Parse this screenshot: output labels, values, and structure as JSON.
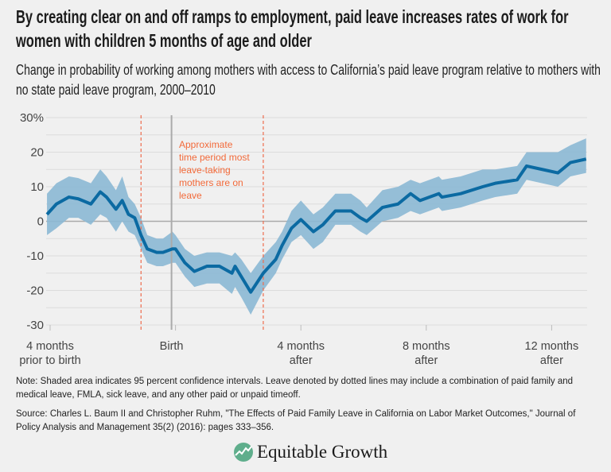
{
  "title": "By creating clear on and off ramps to employment, paid leave increases rates of work for women with children 5 months of age and older",
  "subtitle": "Change in probability of working among mothers with access to California’s paid leave program relative to mothers with no state paid leave program, 2000–2010",
  "chart_data": {
    "type": "line",
    "title": "",
    "xlabel": "",
    "ylabel": "",
    "ylim": [
      -30,
      30
    ],
    "xlim": [
      -4.1,
      13.1
    ],
    "y_ticks": [
      {
        "value": 30,
        "label": "30%"
      },
      {
        "value": 20,
        "label": "20"
      },
      {
        "value": 10,
        "label": "10"
      },
      {
        "value": 0,
        "label": "0"
      },
      {
        "value": -10,
        "label": "-10"
      },
      {
        "value": -20,
        "label": "-20"
      },
      {
        "value": -30,
        "label": "-30"
      }
    ],
    "x_ticks": [
      {
        "value": -4,
        "label": [
          "4 months",
          "prior to birth"
        ]
      },
      {
        "value": 0,
        "label": [
          "Birth"
        ]
      },
      {
        "value": 4,
        "label": [
          "4 months",
          "after"
        ]
      },
      {
        "value": 8,
        "label": [
          "8 months",
          "after"
        ]
      },
      {
        "value": 12,
        "label": [
          "12 months",
          "after"
        ]
      }
    ],
    "grid": true,
    "grid_step": 5,
    "x_unit": "months relative to birth",
    "series": [
      {
        "x": [
          -4.1,
          -3.8,
          -3.4,
          -3.1,
          -2.7,
          -2.4,
          -2.2,
          -1.9,
          -1.7,
          -1.5,
          -1.3,
          -1.1,
          -0.9,
          -0.6,
          -0.4,
          -0.1,
          0.0,
          0.3,
          0.6,
          1.0,
          1.4,
          1.8,
          1.9,
          2.1,
          2.4,
          2.8,
          3.2,
          3.4,
          3.7,
          4.0,
          4.4,
          4.7,
          5.1,
          5.6,
          5.9,
          6.1,
          6.6,
          7.1,
          7.5,
          7.8,
          8.4,
          8.5,
          9.1,
          9.8,
          10.2,
          10.9,
          11.2,
          11.7,
          12.2,
          12.6,
          13.1
        ],
        "values": [
          2,
          5,
          7,
          6.5,
          5,
          8.5,
          7,
          3.5,
          6,
          2,
          1,
          -4,
          -8,
          -9,
          -9,
          -8,
          -8,
          -12,
          -14.5,
          -13,
          -13,
          -15,
          -13,
          -16,
          -20.5,
          -15,
          -11,
          -7,
          -2,
          0.5,
          -3,
          -1,
          3,
          3,
          1,
          0,
          4,
          5,
          8,
          6,
          8,
          7,
          8,
          10,
          11,
          12,
          16,
          15,
          14,
          17,
          18
        ],
        "ci_lower": [
          -4,
          -2,
          1,
          1,
          -1,
          2,
          1,
          -3,
          0,
          -3,
          -4,
          -8,
          -12,
          -13,
          -13,
          -12,
          -12,
          -16,
          -19,
          -18,
          -18,
          -21,
          -19,
          -22,
          -27,
          -20,
          -15,
          -11,
          -6,
          -4,
          -8,
          -6,
          -1,
          -1,
          -3,
          -4,
          0,
          1,
          3,
          2,
          4,
          3,
          4,
          6,
          7,
          8,
          12,
          11,
          10,
          13,
          14
        ],
        "ci_upper": [
          8,
          11,
          13,
          12.5,
          11,
          15,
          13,
          9,
          13,
          7,
          5,
          1,
          -4,
          -5,
          -5,
          -3,
          -4,
          -8,
          -10,
          -9,
          -9,
          -10,
          -9,
          -11,
          -15,
          -10,
          -6,
          -3,
          3,
          6,
          2,
          4,
          8,
          8,
          6,
          4,
          9,
          10,
          12,
          11,
          13,
          12,
          13,
          15,
          15,
          16,
          20,
          20,
          20,
          22,
          24
        ]
      }
    ],
    "shading_label": "95 percent confidence intervals",
    "vertical_markers": [
      {
        "value": -1.1,
        "style": "dashed"
      },
      {
        "value": 0,
        "style": "solid"
      },
      {
        "value": 2.8,
        "style": "dashed"
      }
    ],
    "annotation": [
      "Approximate",
      "time period most",
      "leave-taking",
      "mothers are on",
      "leave"
    ]
  },
  "colors": {
    "line": "#0b6aa2",
    "band": "#8bb8d4",
    "annotation": "#f26a3a",
    "marker": "#ee6c4d",
    "grid": "#dcdcdc",
    "zero": "#aaaaaa"
  },
  "note": "Note: Shaded area indicates 95 percent confidence intervals. Leave denoted by dotted lines may include a combination of paid family and medical leave, FMLA, sick leave, and any other paid or unpaid timeoff.",
  "source": "Source: Charles L. Baum II and Christopher Ruhm, \"The Effects of Paid Family Leave in California on Labor Market Outcomes,\" Journal of Policy Analysis and Management 35(2) (2016): pages 333–356.",
  "logo": {
    "text": "Equitable Growth",
    "icon": "growth-chart-icon"
  }
}
